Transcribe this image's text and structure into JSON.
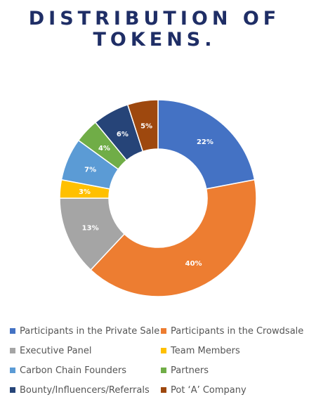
{
  "title": {
    "line1": "DISTRIBUTION OF",
    "line2": "TOKENS."
  },
  "chart_data": {
    "type": "pie",
    "style": "donut",
    "legend_position": "bottom",
    "slices": [
      {
        "label": "Participants in the Private Sale",
        "value": 22,
        "display": "22%",
        "color": "#4472c4"
      },
      {
        "label": "Participants in the Crowdsale",
        "value": 40,
        "display": "40%",
        "color": "#ed7d31"
      },
      {
        "label": "Executive Panel",
        "value": 13,
        "display": "13%",
        "color": "#a5a5a5"
      },
      {
        "label": "Team Members",
        "value": 3,
        "display": "3%",
        "color": "#ffc000"
      },
      {
        "label": "Carbon Chain Founders",
        "value": 7,
        "display": "7%",
        "color": "#5b9bd5"
      },
      {
        "label": "Partners",
        "value": 4,
        "display": "4%",
        "color": "#70ad47"
      },
      {
        "label": "Bounty/Influencers/Referrals",
        "value": 6,
        "display": "6%",
        "color": "#264478"
      },
      {
        "label": "Pot ‘A’ Company",
        "value": 5,
        "display": "5%",
        "color": "#9e480e"
      }
    ]
  }
}
